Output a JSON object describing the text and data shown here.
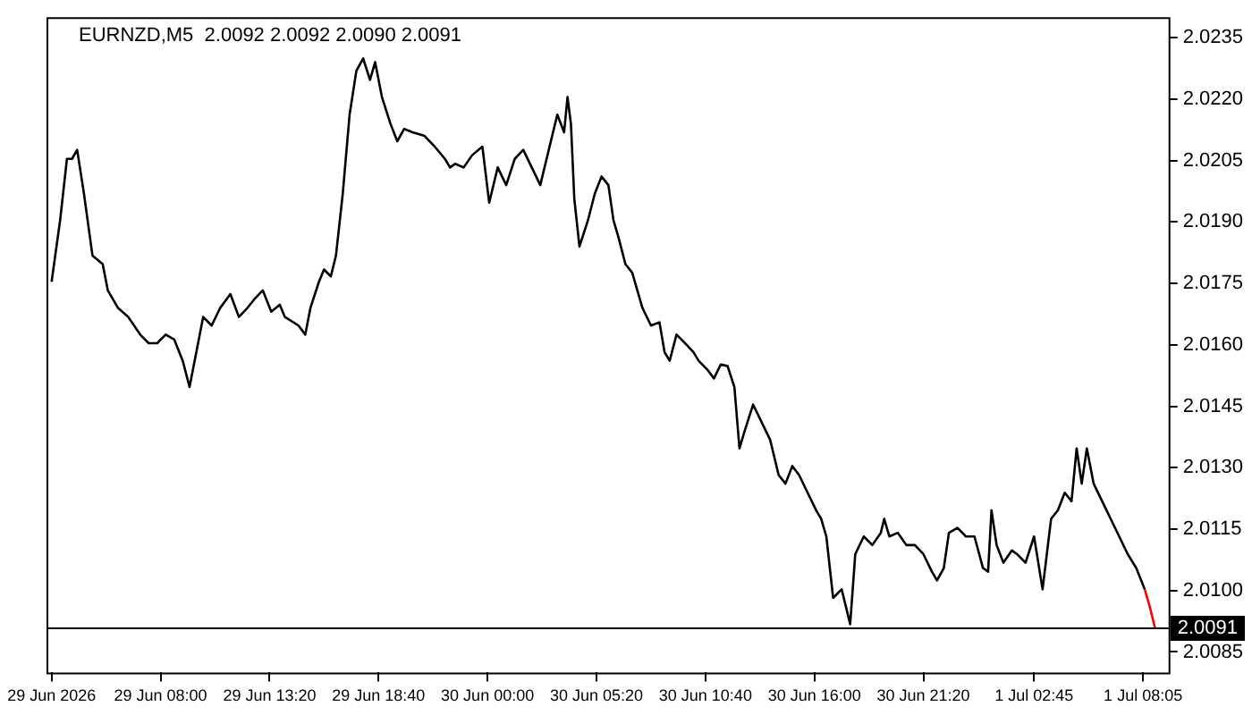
{
  "chart_data": {
    "type": "line",
    "title": "EURNZD,M5  2.0092 2.0092 2.0090 2.0091",
    "xlim": [
      "2026-06-29T02:25",
      "2026-07-01T09:20"
    ],
    "xticks": [
      {
        "value": "2026-06-29T02:40",
        "label": "29 Jun 2026"
      },
      {
        "value": "2026-06-29T08:00",
        "label": "29 Jun 08:00"
      },
      {
        "value": "2026-06-29T13:20",
        "label": "29 Jun 13:20"
      },
      {
        "value": "2026-06-29T18:40",
        "label": "29 Jun 18:40"
      },
      {
        "value": "2026-06-30T00:00",
        "label": "30 Jun 00:00"
      },
      {
        "value": "2026-06-30T05:20",
        "label": "30 Jun 05:20"
      },
      {
        "value": "2026-06-30T10:40",
        "label": "30 Jun 10:40"
      },
      {
        "value": "2026-06-30T16:00",
        "label": "30 Jun 16:00"
      },
      {
        "value": "2026-06-30T21:20",
        "label": "30 Jun 21:20"
      },
      {
        "value": "2026-07-01T02:45",
        "label": "1 Jul 02:45"
      },
      {
        "value": "2026-07-01T08:05",
        "label": "1 Jul 08:05"
      }
    ],
    "ylim": [
      2.008,
      2.024
    ],
    "yticks": [
      {
        "value": 2.0085,
        "label": "2.0085"
      },
      {
        "value": 2.01,
        "label": "2.0100"
      },
      {
        "value": 2.0115,
        "label": "2.0115"
      },
      {
        "value": 2.013,
        "label": "2.0130"
      },
      {
        "value": 2.0145,
        "label": "2.0145"
      },
      {
        "value": 2.016,
        "label": "2.0160"
      },
      {
        "value": 2.0175,
        "label": "2.0175"
      },
      {
        "value": 2.019,
        "label": "2.0190"
      },
      {
        "value": 2.0205,
        "label": "2.0205"
      },
      {
        "value": 2.022,
        "label": "2.0220"
      },
      {
        "value": 2.0235,
        "label": "2.0235"
      }
    ],
    "grid": false,
    "legend": false,
    "marker": "none",
    "line_style": "solid",
    "ref_lines": [
      {
        "axis": "y",
        "value": 2.0091,
        "label": "2.0091",
        "color": "#000000"
      }
    ],
    "series": [
      {
        "color": "#000000",
        "x": [
          "2026-06-29T02:40",
          "2026-06-29T03:05",
          "2026-06-29T03:25",
          "2026-06-29T03:40",
          "2026-06-29T03:55",
          "2026-06-29T04:15",
          "2026-06-29T04:40",
          "2026-06-29T05:10",
          "2026-06-29T05:25",
          "2026-06-29T05:55",
          "2026-06-29T06:25",
          "2026-06-29T07:00",
          "2026-06-29T07:25",
          "2026-06-29T07:50",
          "2026-06-29T08:15",
          "2026-06-29T08:40",
          "2026-06-29T09:05",
          "2026-06-29T09:25",
          "2026-06-29T09:45",
          "2026-06-29T10:05",
          "2026-06-29T10:30",
          "2026-06-29T10:55",
          "2026-06-29T11:25",
          "2026-06-29T11:50",
          "2026-06-29T12:15",
          "2026-06-29T12:35",
          "2026-06-29T13:00",
          "2026-06-29T13:25",
          "2026-06-29T13:50",
          "2026-06-29T14:05",
          "2026-06-29T14:45",
          "2026-06-29T15:05",
          "2026-06-29T15:20",
          "2026-06-29T15:45",
          "2026-06-29T16:00",
          "2026-06-29T16:20",
          "2026-06-29T16:35",
          "2026-06-29T16:55",
          "2026-06-29T17:15",
          "2026-06-29T17:35",
          "2026-06-29T17:55",
          "2026-06-29T18:15",
          "2026-06-29T18:30",
          "2026-06-29T18:50",
          "2026-06-29T19:15",
          "2026-06-29T19:35",
          "2026-06-29T19:55",
          "2026-06-29T20:20",
          "2026-06-29T20:55",
          "2026-06-29T21:25",
          "2026-06-29T21:55",
          "2026-06-29T22:10",
          "2026-06-29T22:25",
          "2026-06-29T22:50",
          "2026-06-29T23:15",
          "2026-06-29T23:45",
          "2026-06-30T00:05",
          "2026-06-30T00:30",
          "2026-06-30T00:55",
          "2026-06-30T01:20",
          "2026-06-30T01:45",
          "2026-06-30T02:10",
          "2026-06-30T02:35",
          "2026-06-30T03:00",
          "2026-06-30T03:25",
          "2026-06-30T03:45",
          "2026-06-30T03:55",
          "2026-06-30T04:05",
          "2026-06-30T04:15",
          "2026-06-30T04:30",
          "2026-06-30T04:55",
          "2026-06-30T05:15",
          "2026-06-30T05:35",
          "2026-06-30T05:55",
          "2026-06-30T06:10",
          "2026-06-30T06:25",
          "2026-06-30T06:45",
          "2026-06-30T07:05",
          "2026-06-30T07:20",
          "2026-06-30T07:35",
          "2026-06-30T08:00",
          "2026-06-30T08:25",
          "2026-06-30T08:40",
          "2026-06-30T08:55",
          "2026-06-30T09:15",
          "2026-06-30T09:40",
          "2026-06-30T10:05",
          "2026-06-30T10:20",
          "2026-06-30T10:45",
          "2026-06-30T11:05",
          "2026-06-30T11:25",
          "2026-06-30T11:45",
          "2026-06-30T12:05",
          "2026-06-30T12:20",
          "2026-06-30T12:35",
          "2026-06-30T13:00",
          "2026-06-30T13:25",
          "2026-06-30T13:50",
          "2026-06-30T14:15",
          "2026-06-30T14:35",
          "2026-06-30T14:55",
          "2026-06-30T15:15",
          "2026-06-30T15:40",
          "2026-06-30T16:05",
          "2026-06-30T16:20",
          "2026-06-30T16:35",
          "2026-06-30T16:55",
          "2026-06-30T17:20",
          "2026-06-30T17:45",
          "2026-06-30T18:00",
          "2026-06-30T18:25",
          "2026-06-30T18:50",
          "2026-06-30T19:15",
          "2026-06-30T19:25",
          "2026-06-30T19:40",
          "2026-06-30T20:05",
          "2026-06-30T20:30",
          "2026-06-30T20:55",
          "2026-06-30T21:20",
          "2026-06-30T21:45",
          "2026-06-30T22:00",
          "2026-06-30T22:20",
          "2026-06-30T22:35",
          "2026-06-30T23:00",
          "2026-06-30T23:25",
          "2026-06-30T23:50",
          "2026-07-01T00:15",
          "2026-07-01T00:30",
          "2026-07-01T00:40",
          "2026-07-01T00:55",
          "2026-07-01T01:15",
          "2026-07-01T01:40",
          "2026-07-01T01:55",
          "2026-07-01T02:20",
          "2026-07-01T02:45",
          "2026-07-01T03:10",
          "2026-07-01T03:35",
          "2026-07-01T03:55",
          "2026-07-01T04:15",
          "2026-07-01T04:35",
          "2026-07-01T04:50",
          "2026-07-01T05:05",
          "2026-07-01T05:20",
          "2026-07-01T05:40",
          "2026-07-01T06:05",
          "2026-07-01T06:30",
          "2026-07-01T06:55",
          "2026-07-01T07:20",
          "2026-07-01T07:45",
          "2026-07-01T08:10"
        ],
        "values": [
          2.01754,
          2.01904,
          2.02054,
          2.02054,
          2.02076,
          2.01969,
          2.01818,
          2.01797,
          2.01733,
          2.0169,
          2.01668,
          2.01625,
          2.01604,
          2.01604,
          2.01625,
          2.01613,
          2.01561,
          2.01497,
          2.01582,
          2.01668,
          2.01647,
          2.0169,
          2.01724,
          2.01668,
          2.0169,
          2.01711,
          2.01733,
          2.01681,
          2.01698,
          2.01668,
          2.01647,
          2.01625,
          2.0169,
          2.01754,
          2.01784,
          2.01767,
          2.01818,
          2.01969,
          2.02162,
          2.02269,
          2.02299,
          2.02247,
          2.0229,
          2.02205,
          2.0214,
          2.02097,
          2.02127,
          2.02119,
          2.0211,
          2.02084,
          2.02054,
          2.02033,
          2.02042,
          2.02033,
          2.02063,
          2.02084,
          2.01947,
          2.02033,
          2.0199,
          2.02054,
          2.02076,
          2.02033,
          2.0199,
          2.02076,
          2.02162,
          2.02119,
          2.02205,
          2.0214,
          2.01956,
          2.0184,
          2.01904,
          2.01969,
          2.02011,
          2.0199,
          2.01904,
          2.01861,
          2.01797,
          2.01776,
          2.01733,
          2.0169,
          2.01647,
          2.01655,
          2.01582,
          2.01561,
          2.01625,
          2.01604,
          2.01582,
          2.01561,
          2.0154,
          2.01518,
          2.01552,
          2.01548,
          2.01497,
          2.01347,
          2.01389,
          2.01454,
          2.01411,
          2.01368,
          2.01282,
          2.01261,
          2.01304,
          2.01282,
          2.01239,
          2.01196,
          2.01175,
          2.01132,
          2.00982,
          2.01003,
          2.00918,
          2.01089,
          2.01132,
          2.01111,
          2.01141,
          2.01175,
          2.01132,
          2.01141,
          2.01111,
          2.01111,
          2.01089,
          2.01046,
          2.01025,
          2.01055,
          2.01141,
          2.01153,
          2.01132,
          2.01132,
          2.01055,
          2.01046,
          2.01196,
          2.01111,
          2.01068,
          2.01098,
          2.01089,
          2.01068,
          2.01132,
          2.01003,
          2.01175,
          2.01196,
          2.01239,
          2.01218,
          2.01347,
          2.01261,
          2.01347,
          2.01261,
          2.01218,
          2.01175,
          2.01132,
          2.01089,
          2.01055,
          2.01003
        ]
      },
      {
        "color": "#ff0000",
        "x": [
          "2026-07-01T08:10",
          "2026-07-01T08:25",
          "2026-07-01T08:40"
        ],
        "values": [
          2.01003,
          2.0096,
          2.00909
        ]
      }
    ]
  }
}
